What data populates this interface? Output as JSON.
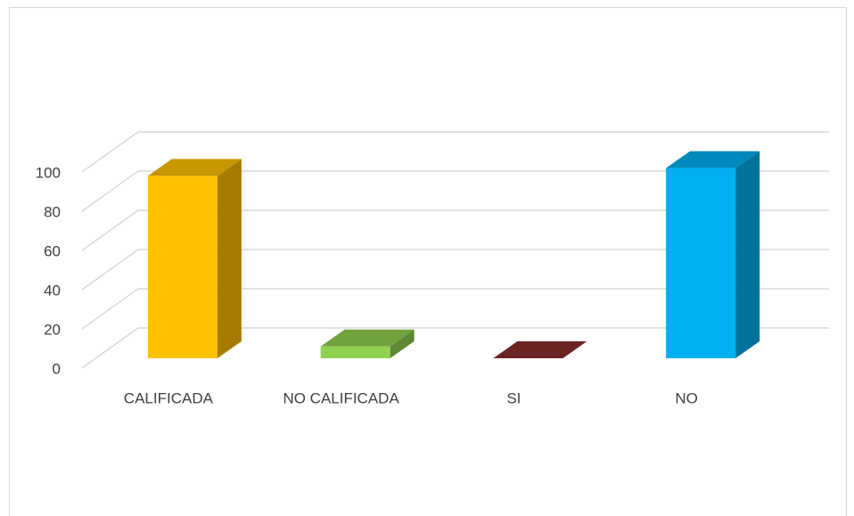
{
  "chart_data": {
    "type": "bar3d",
    "categories": [
      "CALIFICADA",
      "NO CALIFICADA",
      "SI",
      "NO"
    ],
    "values": [
      93,
      6,
      0,
      97
    ],
    "colors": [
      "#ffc000",
      "#92d050",
      "#8b2d2d",
      "#00b0f0"
    ],
    "ylim": [
      0,
      100
    ],
    "yticks": [
      0,
      20,
      40,
      60,
      80,
      100
    ],
    "grid": true
  }
}
